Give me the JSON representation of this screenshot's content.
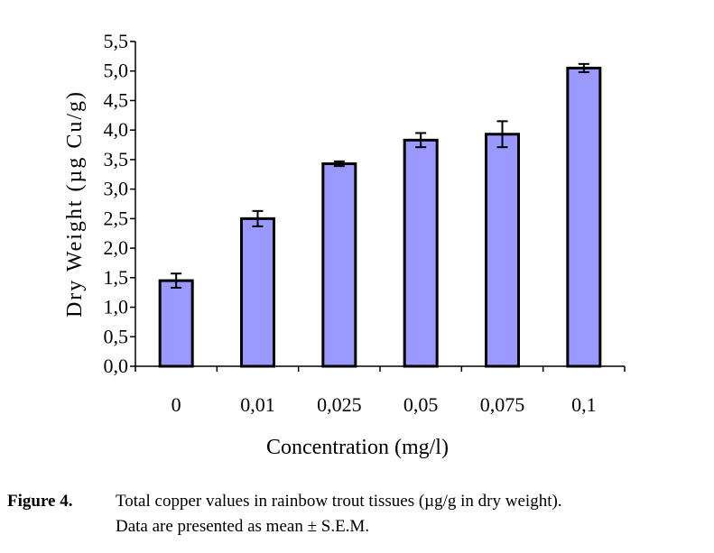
{
  "chart_data": {
    "type": "bar",
    "title": "",
    "xlabel": "Concentration (mg/l)",
    "ylabel": "Dry Weight (µg Cu/g)",
    "categories": [
      "0",
      "0,01",
      "0,025",
      "0,05",
      "0,075",
      "0,1"
    ],
    "values": [
      1.45,
      2.5,
      3.43,
      3.83,
      3.93,
      5.05
    ],
    "errors": [
      0.12,
      0.13,
      0.04,
      0.12,
      0.22,
      0.07
    ],
    "ylim": [
      0,
      5.5
    ],
    "yticks": [
      0,
      0.5,
      1.0,
      1.5,
      2.0,
      2.5,
      3.0,
      3.5,
      4.0,
      4.5,
      5.0,
      5.5
    ],
    "ytick_labels": [
      "0,0",
      "0,5",
      "1,0",
      "1,5",
      "2,0",
      "2,5",
      "3,0",
      "3,5",
      "4,0",
      "4,5",
      "5,0",
      "5,5"
    ],
    "grid": false,
    "legend": "none",
    "bar_color": "#9999ff"
  },
  "caption": {
    "label": "Figure 4.",
    "line1": "Total copper values in rainbow trout tissues (µg/g in dry weight).",
    "line2": "Data are presented as mean ± S.E.M."
  }
}
